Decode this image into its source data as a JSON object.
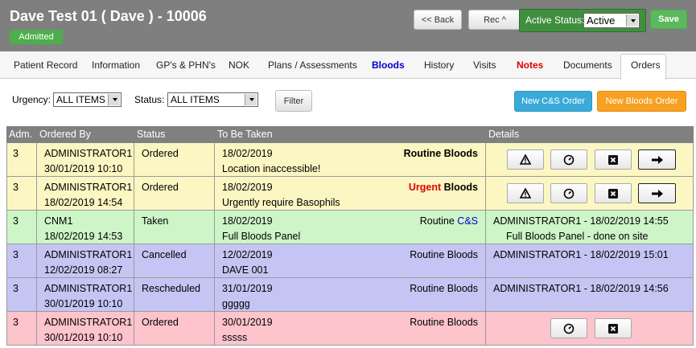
{
  "header": {
    "title": "Dave Test 01 ( Dave ) - 10006",
    "badge": "Admitted",
    "back": "<< Back",
    "rec": "Rec ^",
    "status_label": "Active Status:",
    "status_value": "Active",
    "save": "Save"
  },
  "tabs": [
    "Patient Record",
    "Information",
    "GP's & PHN's",
    "NOK",
    "Plans / Assessments",
    "Bloods",
    "History",
    "Visits",
    "Notes",
    "Documents",
    "Orders"
  ],
  "filters": {
    "urgency_label": "Urgency:",
    "urgency_value": "ALL ITEMS",
    "status_label": "Status:",
    "status_value": "ALL ITEMS",
    "filter": "Filter",
    "new_cs": "New C&S Order",
    "new_bloods": "New Bloods Order"
  },
  "table": {
    "columns": [
      "Adm.",
      "Ordered By",
      "Status",
      "To Be Taken",
      "Details"
    ],
    "rows": [
      {
        "adm": 3,
        "ordered_by": "ADMINISTRATOR1",
        "ordered_at": "30/01/2019 10:10",
        "status": "Ordered",
        "date": "18/02/2019",
        "urgency": "Routine",
        "kind": "Bloods",
        "note": "Location inaccessible!",
        "details": []
      },
      {
        "adm": 3,
        "ordered_by": "ADMINISTRATOR1",
        "ordered_at": "18/02/2019 14:54",
        "status": "Ordered",
        "date": "18/02/2019",
        "urgency": "Urgent",
        "kind": "Bloods",
        "note": "Urgently require Basophils",
        "details": []
      },
      {
        "adm": 3,
        "ordered_by": "CNM1",
        "ordered_at": "18/02/2019 14:53",
        "status": "Taken",
        "date": "18/02/2019",
        "urgency": "Routine",
        "kind": "C&S",
        "note": "Full Bloods Panel",
        "details": [
          "ADMINISTRATOR1 - 18/02/2019 14:55",
          "Full Bloods Panel - done on site"
        ]
      },
      {
        "adm": 3,
        "ordered_by": "ADMINISTRATOR1",
        "ordered_at": "12/02/2019 08:27",
        "status": "Cancelled",
        "date": "12/02/2019",
        "urgency": "Routine",
        "kind": "Bloods",
        "note": "DAVE 001",
        "details": [
          "ADMINISTRATOR1 - 18/02/2019 15:01"
        ]
      },
      {
        "adm": 3,
        "ordered_by": "ADMINISTRATOR1",
        "ordered_at": "30/01/2019 10:10",
        "status": "Rescheduled",
        "date": "31/01/2019",
        "urgency": "Routine",
        "kind": "Bloods",
        "note": "ggggg",
        "details": [
          "ADMINISTRATOR1 - 18/02/2019 14:56"
        ]
      },
      {
        "adm": 3,
        "ordered_by": "ADMINISTRATOR1",
        "ordered_at": "30/01/2019 10:10",
        "status": "Ordered",
        "date": "30/01/2019",
        "urgency": "Routine",
        "kind": "Bloods",
        "note": "sssss",
        "details": []
      }
    ]
  }
}
